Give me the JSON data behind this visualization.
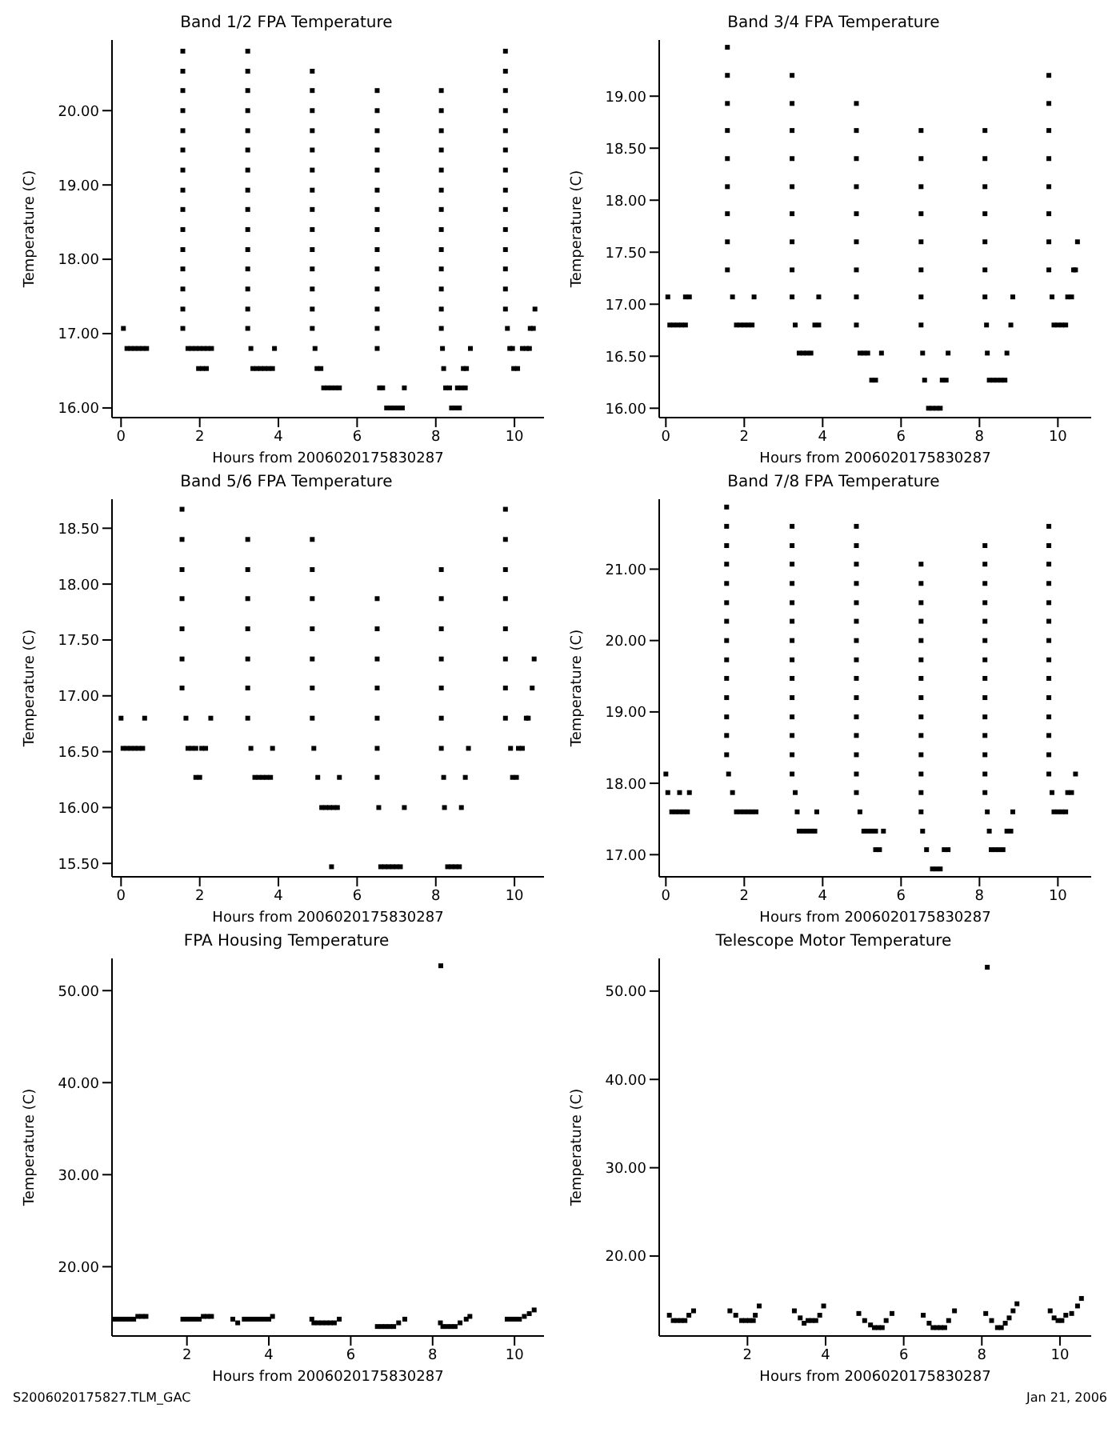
{
  "chart_data": [
    {
      "type": "scatter",
      "title": "Band 1/2 FPA Temperature",
      "xlabel": "Hours from 2006020175830287",
      "ylabel": "Temperature (C)",
      "color": "#000000",
      "marker": "square",
      "xlim": [
        -0.23,
        10.75
      ],
      "xticks": [
        0,
        2,
        4,
        6,
        8,
        10
      ],
      "ylim": [
        15.87,
        20.95
      ],
      "yticks": [
        {
          "value": 16,
          "label": "16.00"
        },
        {
          "value": 17,
          "label": "17.00"
        },
        {
          "value": 18,
          "label": "18.00"
        },
        {
          "value": 19,
          "label": "19.00"
        },
        {
          "value": 20,
          "label": "20.00"
        }
      ],
      "x": [
        0.06,
        0.15,
        0.25,
        0.35,
        0.45,
        0.55,
        0.65,
        1.57,
        1.57,
        1.57,
        1.57,
        1.57,
        1.57,
        1.57,
        1.57,
        1.57,
        1.57,
        1.57,
        1.57,
        1.57,
        1.57,
        1.57,
        1.7,
        1.8,
        1.9,
        2.0,
        2.1,
        2.2,
        2.3,
        1.97,
        2.07,
        2.17,
        3.22,
        3.22,
        3.22,
        3.22,
        3.22,
        3.22,
        3.22,
        3.22,
        3.22,
        3.22,
        3.22,
        3.22,
        3.22,
        3.22,
        3.22,
        3.3,
        3.35,
        3.45,
        3.55,
        3.65,
        3.75,
        3.85,
        3.9,
        4.86,
        4.86,
        4.86,
        4.86,
        4.86,
        4.86,
        4.86,
        4.86,
        4.86,
        4.86,
        4.86,
        4.86,
        4.86,
        4.86,
        4.93,
        4.98,
        5.08,
        5.15,
        5.25,
        5.35,
        5.45,
        5.55,
        6.51,
        6.51,
        6.51,
        6.51,
        6.51,
        6.51,
        6.51,
        6.51,
        6.51,
        6.51,
        6.51,
        6.51,
        6.51,
        6.51,
        6.57,
        6.65,
        6.75,
        6.85,
        6.95,
        7.05,
        7.15,
        7.2,
        8.14,
        8.14,
        8.14,
        8.14,
        8.14,
        8.14,
        8.14,
        8.14,
        8.14,
        8.14,
        8.14,
        8.14,
        8.14,
        8.17,
        8.2,
        8.25,
        8.35,
        8.4,
        8.5,
        8.6,
        8.55,
        8.65,
        8.75,
        8.7,
        8.78,
        8.88,
        9.77,
        9.77,
        9.77,
        9.77,
        9.77,
        9.77,
        9.77,
        9.77,
        9.77,
        9.77,
        9.77,
        9.77,
        9.77,
        9.77,
        9.82,
        9.88,
        9.95,
        10.2,
        10.3,
        10.38,
        9.98,
        10.08,
        10.4,
        10.48,
        10.52
      ],
      "values": [
        17.07,
        16.8,
        16.8,
        16.8,
        16.8,
        16.8,
        16.8,
        17.07,
        17.33,
        17.6,
        17.87,
        18.13,
        18.4,
        18.67,
        18.93,
        19.2,
        19.47,
        19.73,
        20,
        20.27,
        20.53,
        20.8,
        16.8,
        16.8,
        16.8,
        16.8,
        16.8,
        16.8,
        16.8,
        16.53,
        16.53,
        16.53,
        17.07,
        17.33,
        17.6,
        17.87,
        18.13,
        18.4,
        18.67,
        18.93,
        19.2,
        19.47,
        19.73,
        20,
        20.27,
        20.53,
        20.8,
        16.8,
        16.53,
        16.53,
        16.53,
        16.53,
        16.53,
        16.53,
        16.8,
        17.07,
        17.33,
        17.6,
        17.87,
        18.13,
        18.4,
        18.67,
        18.93,
        19.2,
        19.47,
        19.73,
        20,
        20.27,
        20.53,
        16.8,
        16.53,
        16.53,
        16.27,
        16.27,
        16.27,
        16.27,
        16.27,
        16.8,
        17.07,
        17.33,
        17.6,
        17.87,
        18.13,
        18.4,
        18.67,
        18.93,
        19.2,
        19.47,
        19.73,
        20,
        20.27,
        16.27,
        16.27,
        16,
        16,
        16,
        16,
        16,
        16.27,
        17.07,
        17.33,
        17.6,
        17.87,
        18.13,
        18.4,
        18.67,
        18.93,
        19.2,
        19.47,
        19.73,
        20,
        20.27,
        16.8,
        16.53,
        16.27,
        16.27,
        16,
        16,
        16,
        16.27,
        16.27,
        16.27,
        16.53,
        16.53,
        16.8,
        17.33,
        17.6,
        17.87,
        18.13,
        18.4,
        18.67,
        18.93,
        19.2,
        19.47,
        19.73,
        20,
        20.27,
        20.53,
        20.8,
        17.07,
        16.8,
        16.8,
        16.8,
        16.8,
        16.8,
        16.53,
        16.53,
        17.07,
        17.07,
        17.33
      ]
    },
    {
      "type": "scatter",
      "title": "Band 3/4 FPA Temperature",
      "xlabel": "Hours from 2006020175830287",
      "ylabel": "Temperature (C)",
      "color": "#000000",
      "marker": "square",
      "xlim": [
        -0.17,
        10.85
      ],
      "xticks": [
        0,
        2,
        4,
        6,
        8,
        10
      ],
      "ylim": [
        15.91,
        19.54
      ],
      "yticks": [
        {
          "value": 16,
          "label": "16.00"
        },
        {
          "value": 16.5,
          "label": "16.50"
        },
        {
          "value": 17,
          "label": "17.00"
        },
        {
          "value": 17.5,
          "label": "17.50"
        },
        {
          "value": 18,
          "label": "18.00"
        },
        {
          "value": 18.5,
          "label": "18.50"
        },
        {
          "value": 19,
          "label": "19.00"
        }
      ],
      "x": [
        0.05,
        0.5,
        0.6,
        0.1,
        0.2,
        0.3,
        0.4,
        0.5,
        1.57,
        1.57,
        1.57,
        1.57,
        1.57,
        1.57,
        1.57,
        1.57,
        1.57,
        1.7,
        1.8,
        1.9,
        2.0,
        2.1,
        2.2,
        2.25,
        3.22,
        3.22,
        3.22,
        3.22,
        3.22,
        3.22,
        3.22,
        3.22,
        3.22,
        3.3,
        3.4,
        3.5,
        3.6,
        3.7,
        3.8,
        3.9,
        3.9,
        4.86,
        4.86,
        4.86,
        4.86,
        4.86,
        4.86,
        4.86,
        4.86,
        4.86,
        4.95,
        5.05,
        5.15,
        5.25,
        5.35,
        5.5,
        6.51,
        6.51,
        6.51,
        6.51,
        6.51,
        6.51,
        6.51,
        6.51,
        6.55,
        6.6,
        6.7,
        6.8,
        6.9,
        7.0,
        7.05,
        7.15,
        7.2,
        8.14,
        8.14,
        8.14,
        8.14,
        8.14,
        8.14,
        8.14,
        8.18,
        8.2,
        8.25,
        8.35,
        8.45,
        8.55,
        8.65,
        8.7,
        8.8,
        8.85,
        9.77,
        9.77,
        9.77,
        9.77,
        9.77,
        9.77,
        9.77,
        9.77,
        9.85,
        9.9,
        10.0,
        10.1,
        10.2,
        10.25,
        10.35,
        10.4,
        10.45,
        10.5
      ],
      "values": [
        17.07,
        17.07,
        17.07,
        16.8,
        16.8,
        16.8,
        16.8,
        16.8,
        17.33,
        17.6,
        17.87,
        18.13,
        18.4,
        18.67,
        18.93,
        19.2,
        19.47,
        17.07,
        16.8,
        16.8,
        16.8,
        16.8,
        16.8,
        17.07,
        17.07,
        17.33,
        17.6,
        17.87,
        18.13,
        18.4,
        18.67,
        18.93,
        19.2,
        16.8,
        16.53,
        16.53,
        16.53,
        16.53,
        16.8,
        16.8,
        17.07,
        16.8,
        17.07,
        17.33,
        17.6,
        17.87,
        18.13,
        18.4,
        18.67,
        18.93,
        16.53,
        16.53,
        16.53,
        16.27,
        16.27,
        16.53,
        16.8,
        17.07,
        17.33,
        17.6,
        17.87,
        18.13,
        18.4,
        18.67,
        16.53,
        16.27,
        16,
        16,
        16,
        16,
        16.27,
        16.27,
        16.53,
        17.07,
        17.33,
        17.6,
        17.87,
        18.13,
        18.4,
        18.67,
        16.8,
        16.53,
        16.27,
        16.27,
        16.27,
        16.27,
        16.27,
        16.53,
        16.8,
        17.07,
        17.33,
        17.6,
        17.87,
        18.13,
        18.4,
        18.67,
        18.93,
        19.2,
        17.07,
        16.8,
        16.8,
        16.8,
        16.8,
        17.07,
        17.07,
        17.33,
        17.33,
        17.6
      ]
    },
    {
      "type": "scatter",
      "title": "Band 5/6 FPA Temperature",
      "xlabel": "Hours from 2006020175830287",
      "ylabel": "Temperature (C)",
      "color": "#000000",
      "marker": "square",
      "xlim": [
        -0.23,
        10.75
      ],
      "xticks": [
        0,
        2,
        4,
        6,
        8,
        10
      ],
      "ylim": [
        15.38,
        18.76
      ],
      "yticks": [
        {
          "value": 15.5,
          "label": "15.50"
        },
        {
          "value": 16,
          "label": "16.00"
        },
        {
          "value": 16.5,
          "label": "16.50"
        },
        {
          "value": 17,
          "label": "17.00"
        },
        {
          "value": 17.5,
          "label": "17.50"
        },
        {
          "value": 18,
          "label": "18.00"
        },
        {
          "value": 18.5,
          "label": "18.50"
        }
      ],
      "x": [
        0.0,
        0.6,
        0.05,
        0.15,
        0.25,
        0.35,
        0.45,
        0.55,
        1.55,
        1.55,
        1.55,
        1.55,
        1.55,
        1.55,
        1.55,
        1.65,
        1.7,
        1.8,
        1.9,
        2.05,
        2.15,
        1.9,
        2.0,
        2.28,
        3.22,
        3.22,
        3.22,
        3.22,
        3.22,
        3.22,
        3.22,
        3.3,
        3.4,
        3.5,
        3.6,
        3.7,
        3.8,
        3.85,
        4.86,
        4.86,
        4.86,
        4.86,
        4.86,
        4.86,
        4.86,
        4.9,
        5.0,
        5.1,
        5.2,
        5.3,
        5.4,
        5.5,
        5.35,
        5.55,
        6.51,
        6.51,
        6.51,
        6.51,
        6.51,
        6.51,
        6.51,
        6.55,
        6.6,
        6.7,
        6.8,
        6.9,
        7.0,
        7.1,
        7.2,
        8.14,
        8.14,
        8.14,
        8.14,
        8.14,
        8.14,
        8.14,
        8.2,
        8.22,
        8.3,
        8.4,
        8.5,
        8.6,
        8.65,
        8.75,
        8.83,
        9.77,
        9.77,
        9.77,
        9.77,
        9.77,
        9.77,
        9.77,
        9.77,
        9.9,
        9.95,
        10.05,
        10.1,
        10.2,
        10.3,
        10.35,
        10.45,
        10.5
      ],
      "values": [
        16.8,
        16.8,
        16.53,
        16.53,
        16.53,
        16.53,
        16.53,
        16.53,
        17.07,
        17.33,
        17.6,
        17.87,
        18.13,
        18.4,
        18.67,
        16.8,
        16.53,
        16.53,
        16.53,
        16.53,
        16.53,
        16.27,
        16.27,
        16.8,
        16.8,
        17.07,
        17.33,
        17.6,
        17.87,
        18.13,
        18.4,
        16.53,
        16.27,
        16.27,
        16.27,
        16.27,
        16.27,
        16.53,
        16.8,
        17.07,
        17.33,
        17.6,
        17.87,
        18.13,
        18.4,
        16.53,
        16.27,
        16,
        16,
        16,
        16,
        16,
        15.47,
        16.27,
        16.27,
        16.53,
        16.8,
        17.07,
        17.33,
        17.6,
        17.87,
        16,
        15.47,
        15.47,
        15.47,
        15.47,
        15.47,
        15.47,
        16,
        16.53,
        16.8,
        17.07,
        17.33,
        17.6,
        17.87,
        18.13,
        16.27,
        16,
        15.47,
        15.47,
        15.47,
        15.47,
        16,
        16.27,
        16.53,
        16.8,
        17.07,
        17.33,
        17.6,
        17.87,
        18.13,
        18.4,
        18.67,
        16.53,
        16.27,
        16.27,
        16.53,
        16.53,
        16.8,
        16.8,
        17.07,
        17.33
      ]
    },
    {
      "type": "scatter",
      "title": "Band 7/8 FPA Temperature",
      "xlabel": "Hours from 2006020175830287",
      "ylabel": "Temperature (C)",
      "color": "#000000",
      "marker": "square",
      "xlim": [
        -0.17,
        10.85
      ],
      "xticks": [
        0,
        2,
        4,
        6,
        8,
        10
      ],
      "ylim": [
        16.69,
        21.98
      ],
      "yticks": [
        {
          "value": 17,
          "label": "17.00"
        },
        {
          "value": 18,
          "label": "18.00"
        },
        {
          "value": 19,
          "label": "19.00"
        },
        {
          "value": 20,
          "label": "20.00"
        },
        {
          "value": 21,
          "label": "21.00"
        }
      ],
      "x": [
        0.0,
        0.05,
        0.35,
        0.6,
        0.15,
        0.25,
        0.35,
        0.45,
        0.55,
        1.55,
        1.55,
        1.55,
        1.55,
        1.55,
        1.55,
        1.55,
        1.55,
        1.55,
        1.55,
        1.55,
        1.55,
        1.55,
        1.55,
        1.6,
        1.7,
        1.8,
        1.9,
        2.0,
        2.1,
        2.2,
        2.3,
        3.22,
        3.22,
        3.22,
        3.22,
        3.22,
        3.22,
        3.22,
        3.22,
        3.22,
        3.22,
        3.22,
        3.22,
        3.22,
        3.22,
        3.3,
        3.35,
        3.85,
        3.4,
        3.5,
        3.6,
        3.7,
        3.8,
        4.86,
        4.86,
        4.86,
        4.86,
        4.86,
        4.86,
        4.86,
        4.86,
        4.86,
        4.86,
        4.86,
        4.86,
        4.86,
        4.86,
        4.86,
        4.95,
        5.05,
        5.15,
        5.25,
        5.35,
        5.55,
        5.35,
        5.45,
        6.51,
        6.51,
        6.51,
        6.51,
        6.51,
        6.51,
        6.51,
        6.51,
        6.51,
        6.51,
        6.51,
        6.51,
        6.51,
        6.51,
        6.55,
        6.65,
        7.1,
        7.2,
        6.8,
        6.9,
        7.0,
        8.14,
        8.14,
        8.14,
        8.14,
        8.14,
        8.14,
        8.14,
        8.14,
        8.14,
        8.14,
        8.14,
        8.14,
        8.14,
        8.14,
        8.2,
        8.25,
        8.3,
        8.4,
        8.5,
        8.6,
        8.7,
        8.8,
        8.85,
        9.77,
        9.77,
        9.77,
        9.77,
        9.77,
        9.77,
        9.77,
        9.77,
        9.77,
        9.77,
        9.77,
        9.77,
        9.77,
        9.77,
        9.85,
        9.9,
        10.0,
        10.1,
        10.2,
        10.25,
        10.35,
        10.45
      ],
      "values": [
        18.13,
        17.87,
        17.87,
        17.87,
        17.6,
        17.6,
        17.6,
        17.6,
        17.6,
        18.4,
        18.67,
        18.93,
        19.2,
        19.47,
        19.73,
        20,
        20.27,
        20.53,
        20.8,
        21.07,
        21.33,
        21.6,
        21.87,
        18.13,
        17.87,
        17.6,
        17.6,
        17.6,
        17.6,
        17.6,
        17.6,
        18.13,
        18.4,
        18.67,
        18.93,
        19.2,
        19.47,
        19.73,
        20,
        20.27,
        20.53,
        20.8,
        21.07,
        21.33,
        21.6,
        17.87,
        17.6,
        17.6,
        17.33,
        17.33,
        17.33,
        17.33,
        17.33,
        17.87,
        18.13,
        18.4,
        18.67,
        18.93,
        19.2,
        19.47,
        19.73,
        20,
        20.27,
        20.53,
        20.8,
        21.07,
        21.33,
        21.6,
        17.6,
        17.33,
        17.33,
        17.33,
        17.33,
        17.33,
        17.07,
        17.07,
        17.6,
        17.87,
        18.13,
        18.4,
        18.67,
        18.93,
        19.2,
        19.47,
        19.73,
        20,
        20.27,
        20.53,
        20.8,
        21.07,
        17.33,
        17.07,
        17.07,
        17.07,
        16.8,
        16.8,
        16.8,
        17.87,
        18.13,
        18.4,
        18.67,
        18.93,
        19.2,
        19.47,
        19.73,
        20,
        20.27,
        20.53,
        20.8,
        21.07,
        21.33,
        17.6,
        17.33,
        17.07,
        17.07,
        17.07,
        17.07,
        17.33,
        17.33,
        17.6,
        18.13,
        18.4,
        18.67,
        18.93,
        19.2,
        19.47,
        19.73,
        20,
        20.27,
        20.53,
        20.8,
        21.07,
        21.33,
        21.6,
        17.87,
        17.6,
        17.6,
        17.6,
        17.6,
        17.87,
        17.87,
        18.13
      ]
    },
    {
      "type": "scatter",
      "title": "FPA Housing Temperature",
      "xlabel": "Hours from 2006020175830287",
      "ylabel": "Temperature (C)",
      "color": "#000000",
      "marker": "square",
      "xlim": [
        0.17,
        10.72
      ],
      "xticks": [
        2,
        4,
        6,
        8,
        10
      ],
      "ylim": [
        12.47,
        53.5
      ],
      "yticks": [
        {
          "value": 20,
          "label": "20.00"
        },
        {
          "value": 30,
          "label": "30.00"
        },
        {
          "value": 40,
          "label": "40.00"
        },
        {
          "value": 50,
          "label": "50.00"
        }
      ],
      "annotations": [
        "S2006020175827.TLM_GAC"
      ],
      "x": [
        0.2,
        0.3,
        0.4,
        0.5,
        0.6,
        0.7,
        0.8,
        0.9,
        1.0,
        1.9,
        2.0,
        2.1,
        2.2,
        2.3,
        2.4,
        2.5,
        2.6,
        3.12,
        3.24,
        3.4,
        3.5,
        3.6,
        3.7,
        3.8,
        3.9,
        4.0,
        4.09,
        5.05,
        5.1,
        5.2,
        5.3,
        5.4,
        5.5,
        5.6,
        5.72,
        6.65,
        6.75,
        6.85,
        6.95,
        7.05,
        7.17,
        7.32,
        8.2,
        8.19,
        8.25,
        8.35,
        8.45,
        8.55,
        8.67,
        8.82,
        8.91,
        9.82,
        9.92,
        10.02,
        10.12,
        10.24,
        10.36,
        10.48
      ],
      "values": [
        14.3,
        14.3,
        14.3,
        14.3,
        14.3,
        14.3,
        14.6,
        14.6,
        14.6,
        14.3,
        14.3,
        14.3,
        14.3,
        14.3,
        14.6,
        14.6,
        14.6,
        14.3,
        13.9,
        14.3,
        14.3,
        14.3,
        14.3,
        14.3,
        14.3,
        14.3,
        14.6,
        14.3,
        13.9,
        13.9,
        13.9,
        13.9,
        13.9,
        13.9,
        14.3,
        13.5,
        13.5,
        13.5,
        13.5,
        13.5,
        13.9,
        14.3,
        52.7,
        13.9,
        13.5,
        13.5,
        13.5,
        13.5,
        13.9,
        14.3,
        14.6,
        14.3,
        14.3,
        14.3,
        14.3,
        14.6,
        14.9,
        15.3
      ]
    },
    {
      "type": "scatter",
      "title": "Telescope Motor Temperature",
      "xlabel": "Hours from 2006020175830287",
      "ylabel": "Temperature (C)",
      "color": "#000000",
      "marker": "square",
      "xlim": [
        -0.26,
        10.8
      ],
      "xticks": [
        2,
        4,
        6,
        8,
        10
      ],
      "ylim": [
        10.95,
        53.7
      ],
      "yticks": [
        {
          "value": 20,
          "label": "20.00"
        },
        {
          "value": 30,
          "label": "30.00"
        },
        {
          "value": 40,
          "label": "40.00"
        },
        {
          "value": 50,
          "label": "50.00"
        }
      ],
      "annotations": [
        "Jan 21, 2006"
      ],
      "x": [
        0.0,
        0.1,
        0.2,
        0.3,
        0.4,
        0.5,
        0.62,
        1.55,
        1.7,
        1.85,
        1.95,
        2.05,
        2.15,
        2.2,
        2.3,
        3.2,
        3.35,
        3.45,
        3.55,
        3.65,
        3.75,
        3.85,
        3.95,
        4.85,
        5.0,
        5.15,
        5.25,
        5.35,
        5.45,
        5.55,
        5.7,
        6.5,
        6.65,
        6.75,
        6.85,
        6.95,
        7.05,
        7.15,
        7.3,
        8.14,
        8.1,
        8.25,
        8.4,
        8.5,
        8.6,
        8.7,
        8.8,
        8.9,
        9.75,
        9.85,
        9.95,
        10.05,
        10.15,
        10.3,
        10.45,
        10.55
      ],
      "values": [
        13.3,
        12.7,
        12.7,
        12.7,
        12.7,
        13.3,
        13.8,
        13.8,
        13.3,
        12.7,
        12.7,
        12.7,
        12.7,
        13.3,
        14.35,
        13.8,
        13.0,
        12.4,
        12.7,
        12.7,
        12.7,
        13.3,
        14.35,
        13.5,
        12.7,
        12.2,
        11.9,
        11.9,
        11.9,
        12.7,
        13.5,
        13.3,
        12.4,
        11.9,
        11.9,
        11.9,
        11.9,
        12.7,
        13.8,
        52.7,
        13.5,
        12.7,
        11.9,
        11.9,
        12.4,
        13.0,
        13.8,
        14.6,
        13.8,
        13.0,
        12.7,
        12.7,
        13.3,
        13.5,
        14.35,
        15.2
      ]
    }
  ]
}
